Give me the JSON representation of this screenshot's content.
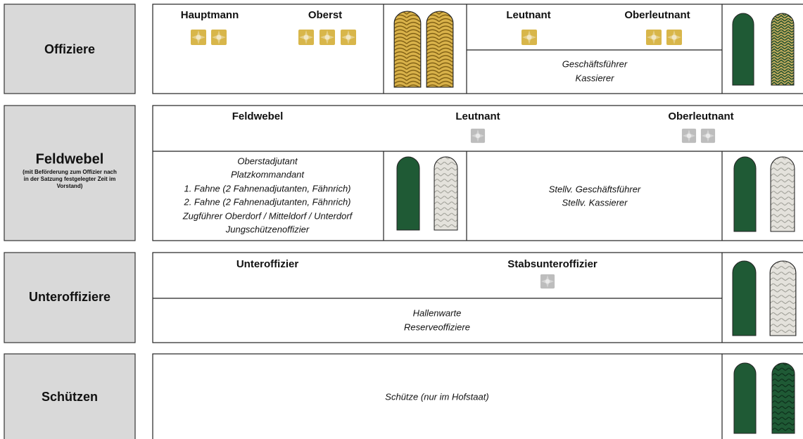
{
  "rows": [
    {
      "label": "Offiziere",
      "ranks": [
        "Hauptmann",
        "Oberst",
        "Leutnant",
        "Oberleutnant"
      ],
      "duties": [
        "Geschäftsführer",
        "Kassierer"
      ]
    },
    {
      "label": "Feldwebel",
      "note": [
        "(mit Beförderung zum Offizier nach",
        "in der Satzung festgelegter Zeit im",
        "Vorstand)"
      ],
      "ranks": [
        "Feldwebel",
        "Leutnant",
        "Oberleutnant"
      ],
      "duties_left": [
        "Oberstadjutant",
        "Platzkommandant",
        "1. Fahne (2 Fahnenadjutanten, Fähnrich)",
        "2. Fahne (2 Fahnenadjutanten, Fähnrich)",
        "Zugführer Oberdorf / Mitteldorf / Unterdorf",
        "Jungschützenoffizier"
      ],
      "duties_right": [
        "Stellv. Geschäftsführer",
        "Stellv. Kassierer"
      ]
    },
    {
      "label": "Unteroffiziere",
      "ranks": [
        "Unteroffizier",
        "Stabsunteroffizier"
      ],
      "duties": [
        "Hallenwarte",
        "Reserveoffiziere"
      ]
    },
    {
      "label": "Schützen",
      "duties": [
        "Schütze (nur im Hofstaat)"
      ]
    }
  ]
}
